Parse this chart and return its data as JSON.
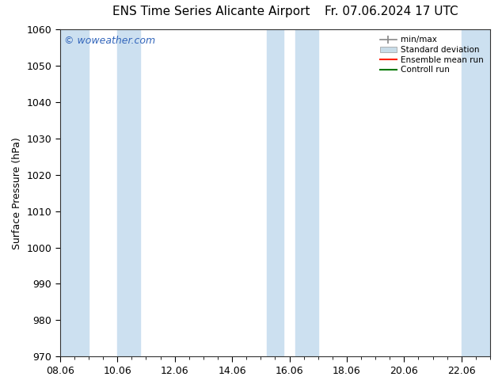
{
  "title_left": "ENS Time Series Alicante Airport",
  "title_right": "Fr. 07.06.2024 17 UTC",
  "ylabel": "Surface Pressure (hPa)",
  "ylim": [
    970,
    1060
  ],
  "yticks": [
    970,
    980,
    990,
    1000,
    1010,
    1020,
    1030,
    1040,
    1050,
    1060
  ],
  "xtick_labels": [
    "08.06",
    "10.06",
    "12.06",
    "14.06",
    "16.06",
    "18.06",
    "20.06",
    "22.06"
  ],
  "xtick_major_positions": [
    0,
    2,
    4,
    6,
    8,
    10,
    12,
    14
  ],
  "xlim": [
    -0.1,
    15.1
  ],
  "x_data_start": 0,
  "x_data_end": 15,
  "shaded_bands": [
    {
      "x_start": -0.1,
      "x_end": 0.5,
      "color": "#cce0f0"
    },
    {
      "x_start": 1.5,
      "x_end": 2.5,
      "color": "#cce0f0"
    },
    {
      "x_start": 7.5,
      "x_end": 8.5,
      "color": "#cce0f0"
    },
    {
      "x_start": 9.5,
      "x_end": 10.0,
      "color": "#cce0f0"
    },
    {
      "x_start": 14.5,
      "x_end": 15.1,
      "color": "#cce0f0"
    }
  ],
  "watermark": "© woweather.com",
  "watermark_color": "#3366bb",
  "background_color": "#ffffff",
  "plot_background": "#ffffff",
  "legend_labels": [
    "min/max",
    "Standard deviation",
    "Ensemble mean run",
    "Controll run"
  ],
  "legend_colors_line": [
    "#888888",
    "#bbccdd",
    "#ff2200",
    "#007700"
  ],
  "legend_std_color": "#c8dce8",
  "title_fontsize": 11,
  "axis_label_fontsize": 9,
  "tick_fontsize": 9,
  "watermark_fontsize": 9
}
